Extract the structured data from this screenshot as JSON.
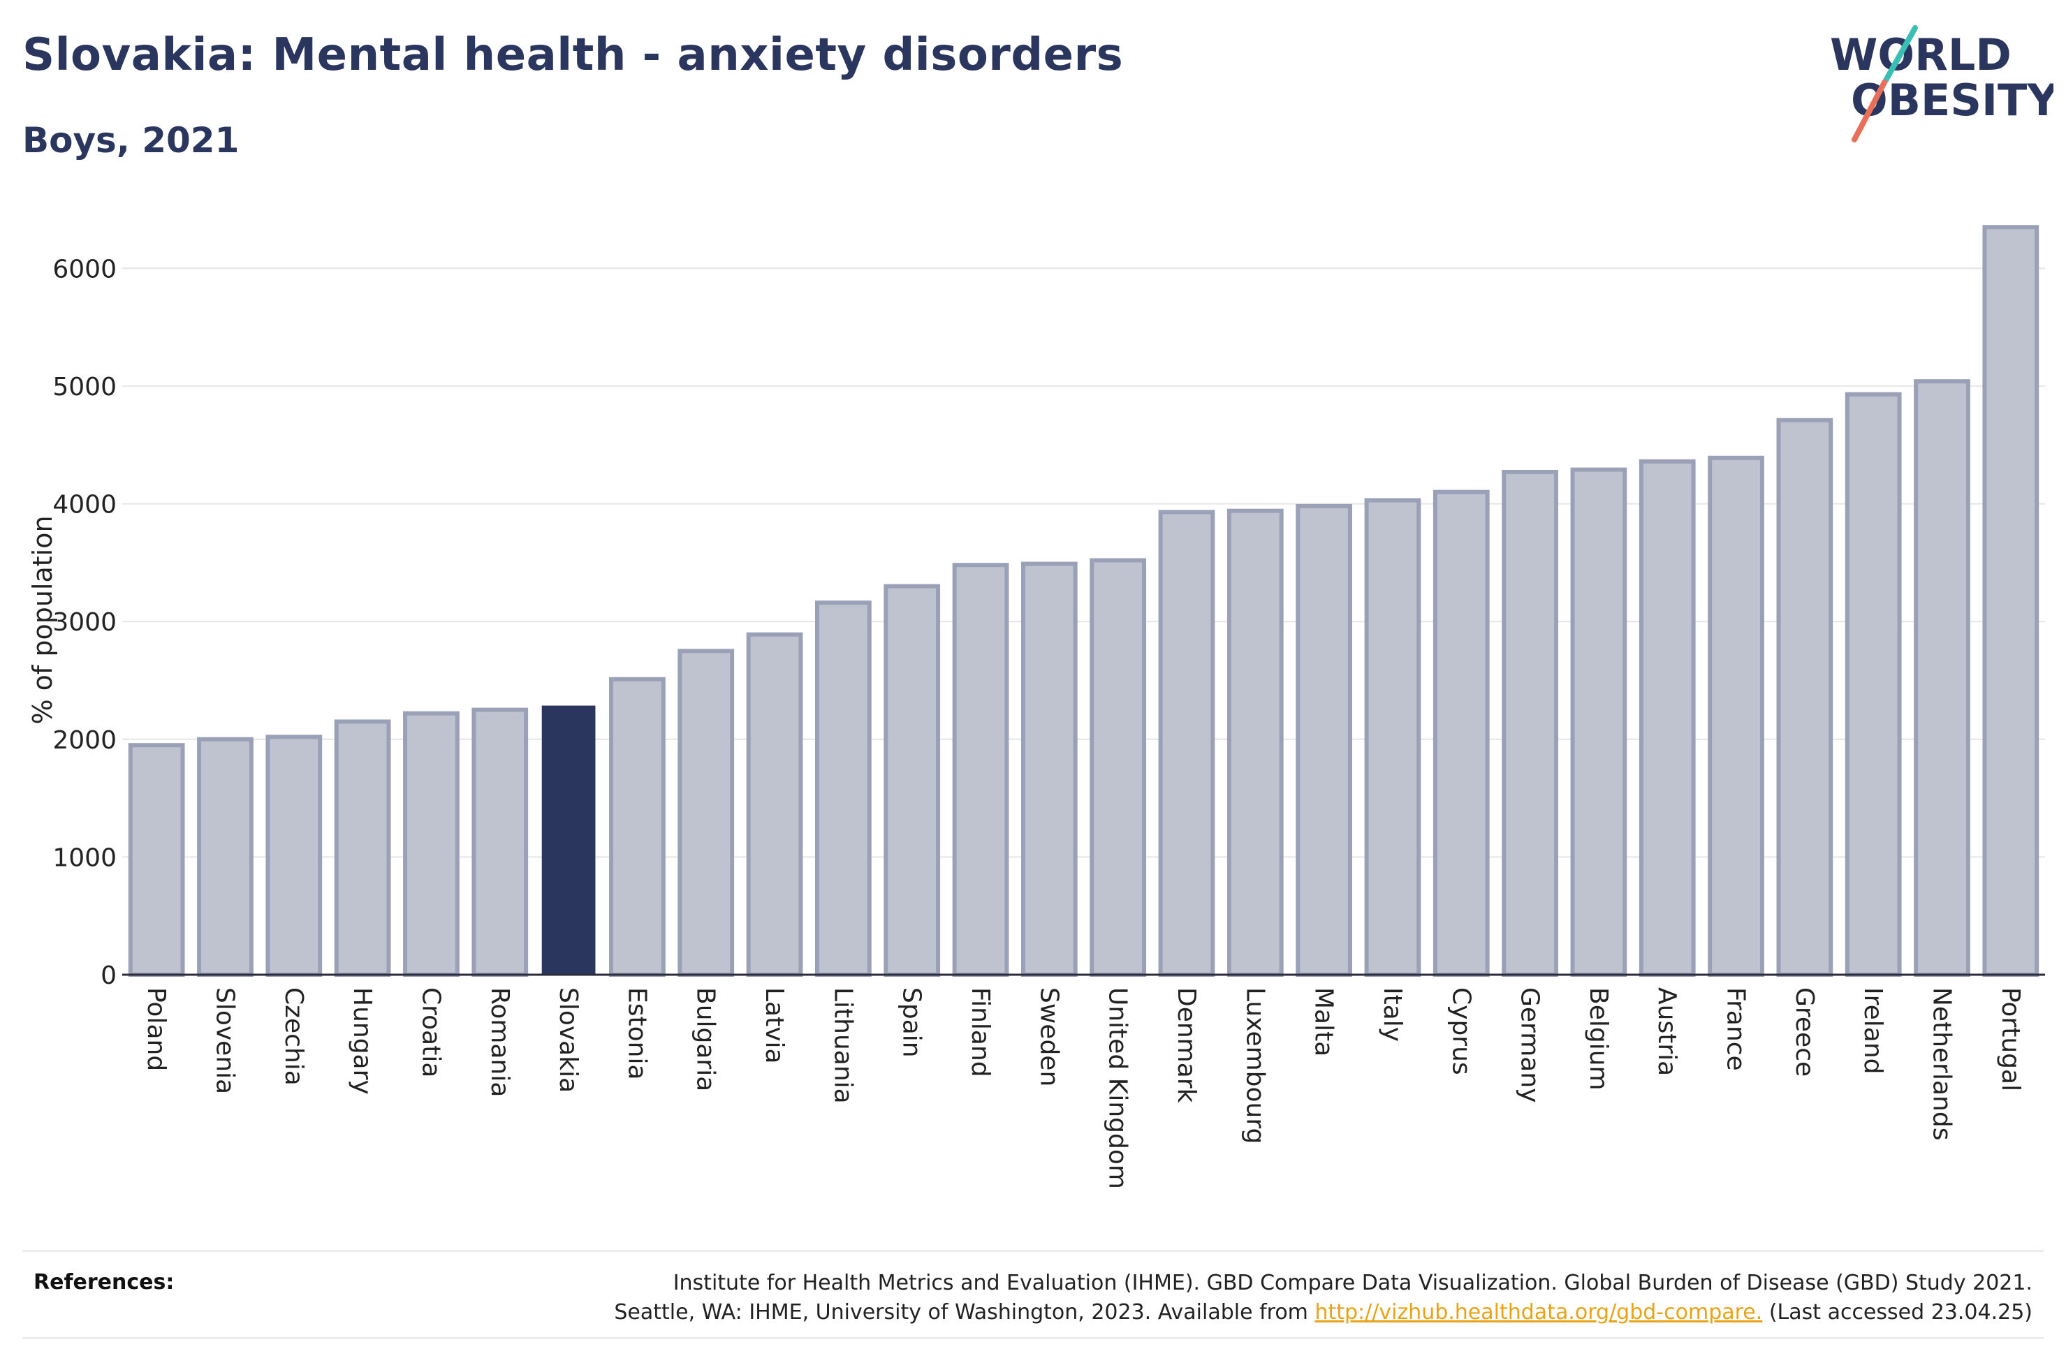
{
  "header": {
    "title": "Slovakia: Mental health - anxiety disorders",
    "subtitle": "Boys, 2021"
  },
  "logo": {
    "line1": "WORLD",
    "line2": "OBESITY"
  },
  "references": {
    "label": "References:",
    "line1": "Institute for Health Metrics and Evaluation (IHME). GBD Compare Data Visualization. Global Burden of Disease (GBD) Study 2021.",
    "line2_pre": "Seattle, WA: IHME, University of Washington, 2023. Available from ",
    "link": "http://vizhub.healthdata.org/gbd-compare.",
    "line2_post": " (Last accessed 23.04.25)"
  },
  "colors": {
    "highlight": "#2b365f",
    "bar": "#bfc3d0",
    "bar_edge": "#9aa0b6",
    "axis_text": "#222222"
  },
  "chart_data": {
    "type": "bar",
    "ylabel": "% of population",
    "ylim": [
      0,
      6500
    ],
    "yticks": [
      0,
      1000,
      2000,
      3000,
      4000,
      5000,
      6000
    ],
    "grid": true,
    "highlight": "Slovakia",
    "categories": [
      "Poland",
      "Slovenia",
      "Czechia",
      "Hungary",
      "Croatia",
      "Romania",
      "Slovakia",
      "Estonia",
      "Bulgaria",
      "Latvia",
      "Lithuania",
      "Spain",
      "Finland",
      "Sweden",
      "United Kingdom",
      "Denmark",
      "Luxembourg",
      "Malta",
      "Italy",
      "Cyprus",
      "Germany",
      "Belgium",
      "Austria",
      "France",
      "Greece",
      "Ireland",
      "Netherlands",
      "Portugal"
    ],
    "values": [
      1950,
      2000,
      2020,
      2150,
      2220,
      2250,
      2280,
      2510,
      2750,
      2890,
      3160,
      3300,
      3480,
      3490,
      3520,
      3930,
      3940,
      3980,
      4030,
      4100,
      4270,
      4290,
      4360,
      4390,
      4710,
      4930,
      5040,
      6350
    ]
  }
}
